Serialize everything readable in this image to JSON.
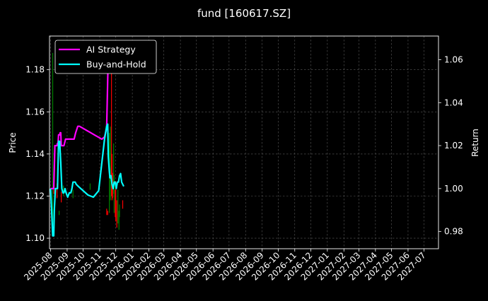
{
  "chart_data": {
    "type": "line",
    "title": "fund [160617.SZ]",
    "ylabel_left": "Price",
    "ylabel_right": "Return",
    "xlabel": "",
    "ylim_left": [
      1.095,
      1.196
    ],
    "ylim_right": [
      0.972,
      1.071
    ],
    "y_ticks_left": [
      "1.10",
      "1.12",
      "1.14",
      "1.16",
      "1.18"
    ],
    "y_ticks_right": [
      "0.98",
      "1.00",
      "1.02",
      "1.04",
      "1.06"
    ],
    "x_ticks": [
      "2025-08",
      "2025-09",
      "2025-10",
      "2025-11",
      "2025-12",
      "2026-01",
      "2026-02",
      "2026-03",
      "2026-04",
      "2026-05",
      "2026-06",
      "2026-07",
      "2026-08",
      "2026-09",
      "2026-10",
      "2026-11",
      "2026-12",
      "2027-01",
      "2027-02",
      "2027-03",
      "2027-04",
      "2027-05",
      "2027-06",
      "2027-07"
    ],
    "grid": true,
    "legend_position": "top-left",
    "background": "#000000",
    "up_color": "#008000",
    "down_color": "#ff0000",
    "series": [
      {
        "name": "AI Strategy",
        "color": "#ff00ff",
        "axis": "right",
        "x": [
          "2025-08-01",
          "2025-08-03",
          "2025-08-05",
          "2025-08-07",
          "2025-08-09",
          "2025-08-11",
          "2025-08-12",
          "2025-08-13",
          "2025-08-14",
          "2025-08-15",
          "2025-08-16",
          "2025-08-18",
          "2025-08-19",
          "2025-08-20",
          "2025-08-21",
          "2025-08-23",
          "2025-08-26",
          "2025-08-29",
          "2025-09-02",
          "2025-09-06",
          "2025-09-10",
          "2025-09-14",
          "2025-09-17",
          "2025-09-21",
          "2025-09-24",
          "2025-10-01",
          "2025-10-08",
          "2025-10-15",
          "2025-10-22",
          "2025-10-29",
          "2025-11-05",
          "2025-11-10",
          "2025-11-14",
          "2025-11-17",
          "2025-11-19",
          "2025-11-22",
          "2025-11-25",
          "2025-11-28",
          "2025-12-02",
          "2025-12-05",
          "2025-12-09",
          "2025-12-12",
          "2025-12-16"
        ],
        "y": [
          1.0,
          1.0,
          1.0,
          1.0,
          1.02,
          1.02,
          1.02,
          1.02,
          1.021,
          1.021,
          1.025,
          1.025,
          1.026,
          1.026,
          1.02,
          1.02,
          1.02,
          1.023,
          1.023,
          1.023,
          1.023,
          1.023,
          1.026,
          1.029,
          1.029,
          1.028,
          1.027,
          1.026,
          1.025,
          1.024,
          1.023,
          1.024,
          1.028,
          1.063,
          1.068,
          1.058,
          1.058,
          1.058,
          1.058,
          1.061,
          1.061,
          1.062,
          1.062
        ]
      },
      {
        "name": "Buy-and-Hold",
        "color": "#00ffff",
        "axis": "right",
        "x": [
          "2025-08-01",
          "2025-08-03",
          "2025-08-05",
          "2025-08-07",
          "2025-08-08",
          "2025-08-10",
          "2025-08-12",
          "2025-08-14",
          "2025-08-16",
          "2025-08-18",
          "2025-08-20",
          "2025-08-22",
          "2025-08-24",
          "2025-08-26",
          "2025-08-28",
          "2025-08-30",
          "2025-09-02",
          "2025-09-05",
          "2025-09-08",
          "2025-09-10",
          "2025-09-12",
          "2025-09-14",
          "2025-09-16",
          "2025-09-18",
          "2025-09-22",
          "2025-10-01",
          "2025-10-10",
          "2025-10-20",
          "2025-10-30",
          "2025-11-05",
          "2025-11-10",
          "2025-11-14",
          "2025-11-16",
          "2025-11-17",
          "2025-11-19",
          "2025-11-20",
          "2025-11-21",
          "2025-11-22",
          "2025-11-24",
          "2025-11-26",
          "2025-11-28",
          "2025-11-30",
          "2025-12-02",
          "2025-12-04",
          "2025-12-06",
          "2025-12-08",
          "2025-12-10",
          "2025-12-12",
          "2025-12-14",
          "2025-12-16"
        ],
        "y": [
          1.0,
          0.99,
          0.978,
          0.978,
          0.99,
          1.0,
          1.0,
          1.0,
          1.022,
          1.022,
          1.012,
          1.0,
          0.998,
          0.998,
          1.0,
          0.998,
          0.996,
          0.998,
          0.998,
          1.0,
          1.003,
          1.003,
          1.003,
          1.002,
          1.001,
          0.999,
          0.997,
          0.996,
          0.999,
          1.012,
          1.023,
          1.029,
          1.03,
          1.015,
          1.008,
          1.005,
          1.005,
          1.006,
          1.002,
          1.0,
          1.003,
          1.003,
          1.0,
          1.003,
          1.003,
          1.006,
          1.007,
          1.003,
          1.002,
          1.001
        ]
      }
    ],
    "candles": [
      {
        "x": "2025-08-05",
        "low": 1.104,
        "high": 1.188,
        "dir": "up"
      },
      {
        "x": "2025-08-07",
        "low": 1.121,
        "high": 1.131,
        "dir": "down"
      },
      {
        "x": "2025-08-13",
        "low": 1.119,
        "high": 1.126,
        "dir": "down"
      },
      {
        "x": "2025-08-17",
        "low": 1.111,
        "high": 1.113,
        "dir": "up"
      },
      {
        "x": "2025-08-21",
        "low": 1.117,
        "high": 1.122,
        "dir": "down"
      },
      {
        "x": "2025-08-25",
        "low": 1.12,
        "high": 1.125,
        "dir": "up"
      },
      {
        "x": "2025-09-12",
        "low": 1.119,
        "high": 1.123,
        "dir": "up"
      },
      {
        "x": "2025-10-14",
        "low": 1.123,
        "high": 1.126,
        "dir": "up"
      },
      {
        "x": "2025-11-14",
        "low": 1.111,
        "high": 1.114,
        "dir": "down"
      },
      {
        "x": "2025-11-16",
        "low": 1.111,
        "high": 1.113,
        "dir": "down"
      },
      {
        "x": "2025-11-19",
        "low": 1.112,
        "high": 1.15,
        "dir": "up"
      },
      {
        "x": "2025-11-21",
        "low": 1.118,
        "high": 1.153,
        "dir": "up"
      },
      {
        "x": "2025-11-23",
        "low": 1.12,
        "high": 1.19,
        "dir": "down"
      },
      {
        "x": "2025-11-24",
        "low": 1.118,
        "high": 1.14,
        "dir": "down"
      },
      {
        "x": "2025-11-25",
        "low": 1.119,
        "high": 1.131,
        "dir": "down"
      },
      {
        "x": "2025-11-27",
        "low": 1.121,
        "high": 1.145,
        "dir": "up"
      },
      {
        "x": "2025-11-28",
        "low": 1.112,
        "high": 1.13,
        "dir": "up"
      },
      {
        "x": "2025-11-30",
        "low": 1.11,
        "high": 1.123,
        "dir": "down"
      },
      {
        "x": "2025-12-01",
        "low": 1.108,
        "high": 1.127,
        "dir": "down"
      },
      {
        "x": "2025-12-03",
        "low": 1.105,
        "high": 1.118,
        "dir": "down"
      },
      {
        "x": "2025-12-05",
        "low": 1.107,
        "high": 1.123,
        "dir": "up"
      },
      {
        "x": "2025-12-07",
        "low": 1.104,
        "high": 1.113,
        "dir": "up"
      },
      {
        "x": "2025-12-08",
        "low": 1.11,
        "high": 1.116,
        "dir": "up"
      },
      {
        "x": "2025-12-14",
        "low": 1.114,
        "high": 1.118,
        "dir": "down"
      }
    ]
  }
}
